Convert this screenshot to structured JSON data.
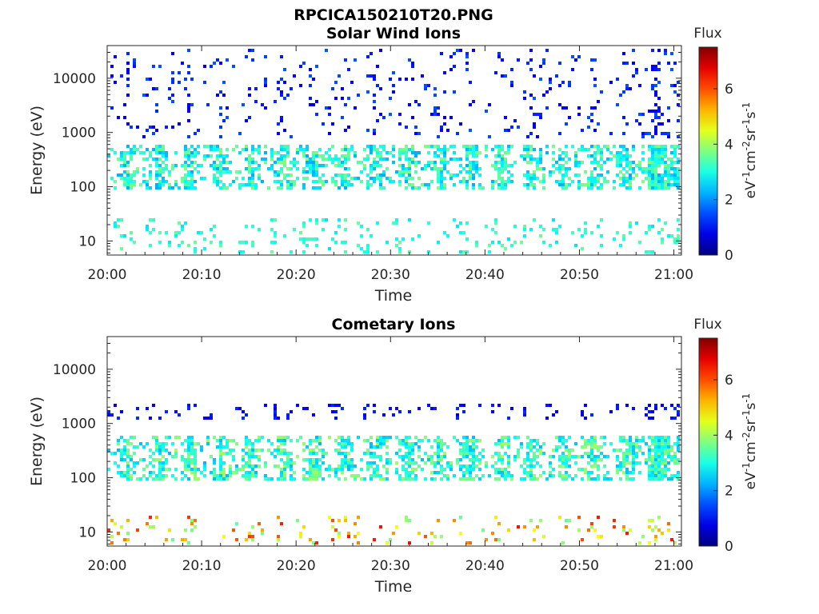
{
  "figure": {
    "title": "RPCICA150210T20.PNG"
  },
  "chart_data": [
    {
      "type": "heatmap",
      "title": "Solar Wind Ions",
      "xlabel": "Time",
      "ylabel": "Energy (eV)",
      "x_ticks": [
        "20:00",
        "20:10",
        "20:20",
        "20:30",
        "20:40",
        "20:50",
        "21:00"
      ],
      "x_range_minutes": [
        0,
        60.8
      ],
      "y_scale": "log",
      "y_ticks": [
        "10",
        "100",
        "1000",
        "10000"
      ],
      "y_range": [
        5.5,
        40000
      ],
      "colorbar": {
        "label_top": "Flux",
        "label_side": "eV-1cm-2sr-1s-1",
        "ticks": [
          "0",
          "2",
          "4",
          "6"
        ],
        "range": [
          0,
          7.5
        ],
        "colormap": "jet"
      },
      "scan_period_minutes": 3.3,
      "bands": [
        {
          "name": "main solar wind band",
          "energy_range": [
            90,
            600
          ],
          "flux_range": [
            2.2,
            3.8
          ]
        },
        {
          "name": "sparse high energy",
          "energy_range": [
            800,
            35000
          ],
          "flux_range": [
            0.7,
            1.6
          ]
        },
        {
          "name": "low energy",
          "energy_range": [
            6,
            30
          ],
          "flux_range": [
            2.6,
            3.6
          ]
        }
      ]
    },
    {
      "type": "heatmap",
      "title": "Cometary Ions",
      "xlabel": "Time",
      "ylabel": "Energy (eV)",
      "x_ticks": [
        "20:00",
        "20:10",
        "20:20",
        "20:30",
        "20:40",
        "20:50",
        "21:00"
      ],
      "x_range_minutes": [
        0,
        60.8
      ],
      "y_scale": "log",
      "y_ticks": [
        "10",
        "100",
        "1000",
        "10000"
      ],
      "y_range": [
        5.5,
        40000
      ],
      "colorbar": {
        "label_top": "Flux",
        "label_side": "eV-1cm-2sr-1s-1",
        "ticks": [
          "0",
          "2",
          "4",
          "6"
        ],
        "range": [
          0,
          7.5
        ],
        "colormap": "jet"
      },
      "scan_period_minutes": 3.3,
      "bands": [
        {
          "name": "main cometary band",
          "energy_range": [
            90,
            600
          ],
          "flux_range": [
            2.3,
            4.0
          ]
        },
        {
          "name": "low energy cometary",
          "energy_range": [
            6,
            20
          ],
          "flux_range": [
            3.5,
            6.5
          ]
        },
        {
          "name": "sparse high energy",
          "energy_range": [
            1200,
            2500
          ],
          "flux_range": [
            0.7,
            1.3
          ]
        }
      ]
    }
  ]
}
